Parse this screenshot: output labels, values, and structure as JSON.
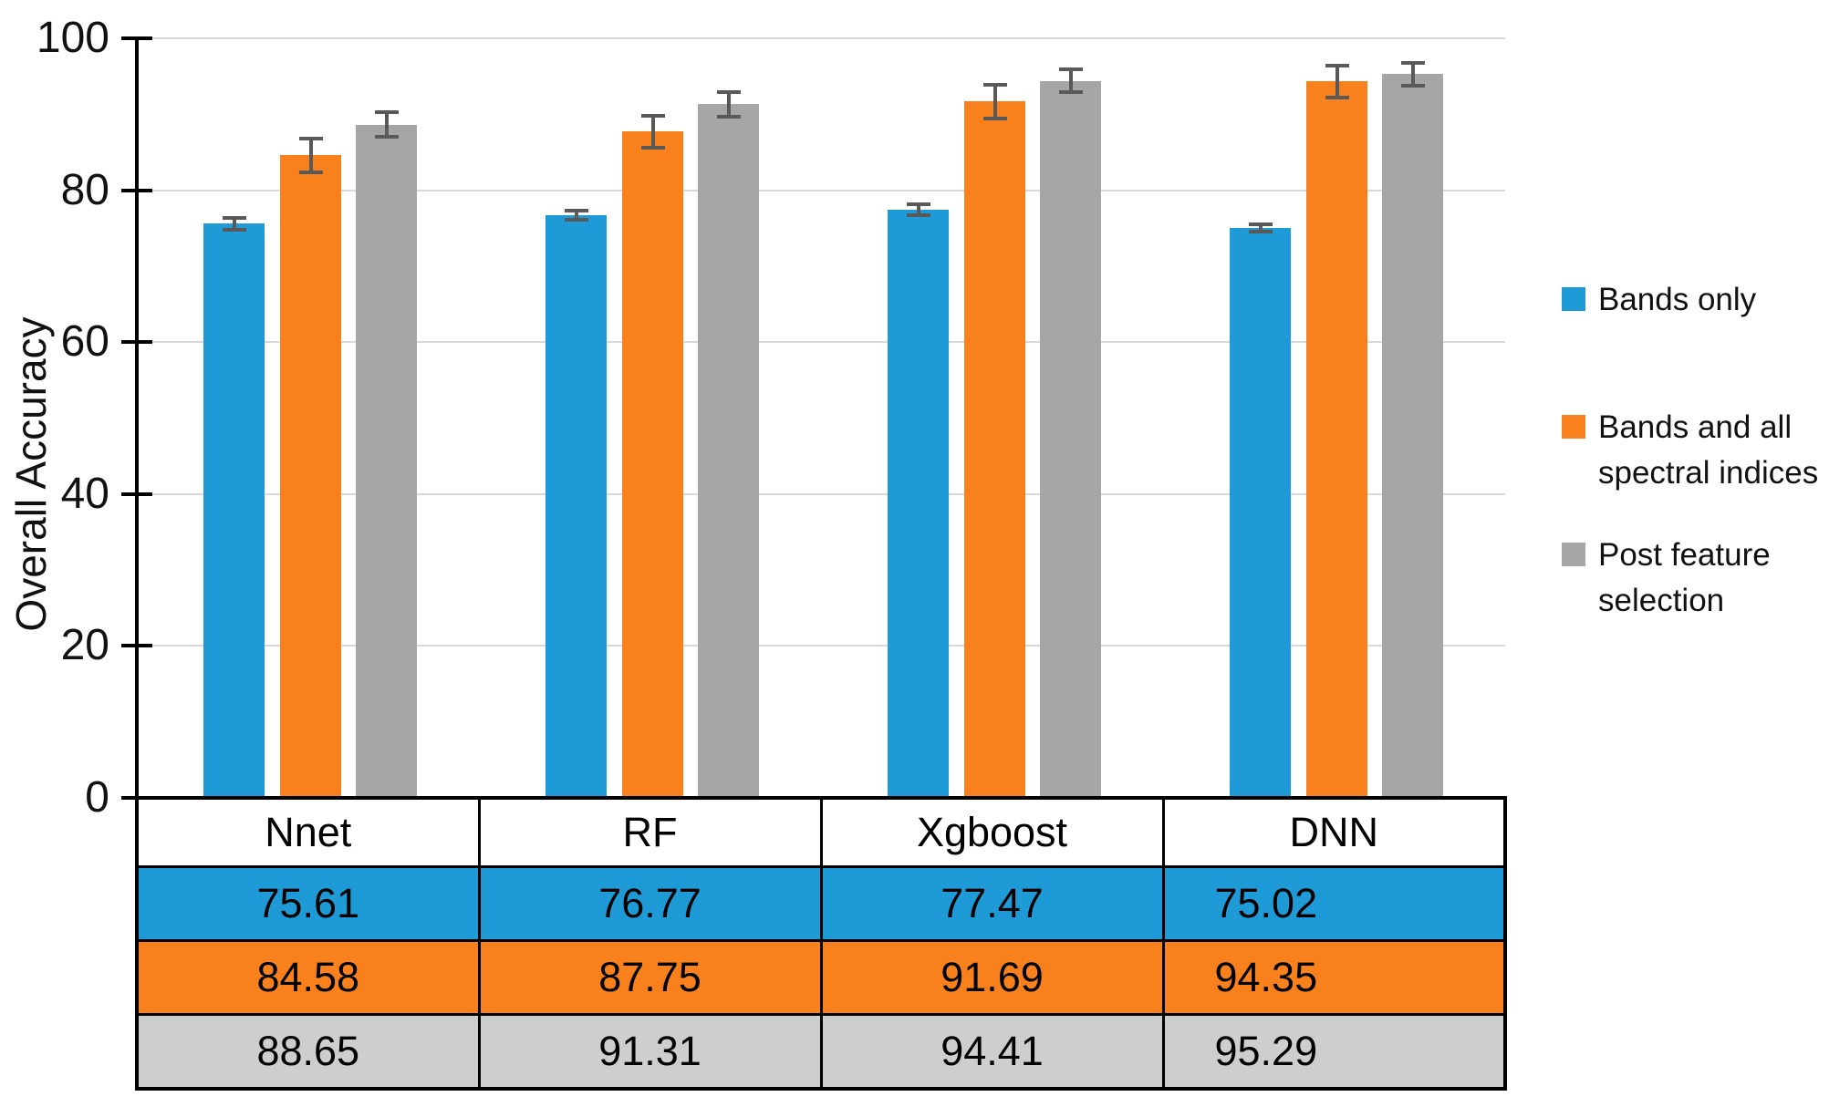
{
  "chart_data": {
    "type": "bar",
    "title": "",
    "ylabel": "Overall Accuracy",
    "xlabel": "",
    "ylim": [
      0,
      100
    ],
    "yticks": [
      0,
      20,
      40,
      60,
      80,
      100
    ],
    "grid": true,
    "legend_position": "right",
    "categories": [
      "Nnet",
      "RF",
      "Xgboost",
      "DNN"
    ],
    "series": [
      {
        "name": "Bands only",
        "label_lines": [
          "Bands only"
        ],
        "color": "#1E9BD7",
        "table_row_color": "#1E9BD7",
        "values": [
          75.61,
          76.77,
          77.47,
          75.02
        ],
        "errors": [
          0.8,
          0.6,
          0.7,
          0.5
        ]
      },
      {
        "name": "Bands and all spectral indices",
        "label_lines": [
          "Bands and all",
          "spectral indices"
        ],
        "color": "#F8811E",
        "table_row_color": "#F8811E",
        "values": [
          84.58,
          87.75,
          91.69,
          94.35
        ],
        "errors": [
          2.2,
          2.1,
          2.2,
          2.1
        ]
      },
      {
        "name": "Post feature selection",
        "label_lines": [
          "Post feature",
          "selection"
        ],
        "color": "#A6A6A6",
        "table_row_color": "#CFCECE",
        "values": [
          88.65,
          91.31,
          94.41,
          95.29
        ],
        "errors": [
          1.6,
          1.6,
          1.5,
          1.5
        ]
      }
    ],
    "error_bar_color": "#595959",
    "gridline_color": "#D9D9D9",
    "axis_color": "#000000"
  },
  "table": {
    "headers": [
      "Nnet",
      "RF",
      "Xgboost",
      "DNN"
    ],
    "rows": [
      [
        "75.61",
        "76.77",
        "77.47",
        "75.02"
      ],
      [
        "84.58",
        "87.75",
        "91.69",
        "94.35"
      ],
      [
        "88.65",
        "91.31",
        "94.41",
        "95.29"
      ]
    ]
  }
}
